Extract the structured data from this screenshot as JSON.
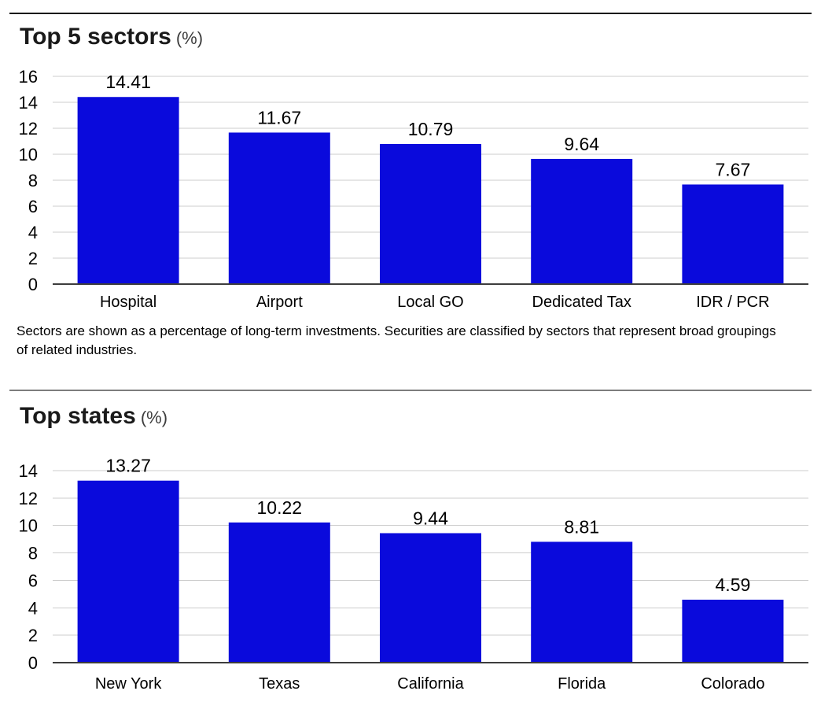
{
  "colors": {
    "bar": "#0a0adc",
    "grid_line": "#cccccc",
    "axis_line": "#3d3d3d",
    "top_rule": "#1a1a1a",
    "divider_rule": "#7d7d7d",
    "text": "#000000"
  },
  "chart_data": [
    {
      "type": "bar",
      "title": "Top 5 sectors",
      "title_unit": "(%)",
      "categories": [
        "Hospital",
        "Airport",
        "Local GO",
        "Dedicated Tax",
        "IDR / PCR"
      ],
      "values": [
        14.41,
        11.67,
        10.79,
        9.64,
        7.67
      ],
      "value_labels": [
        "14.41",
        "11.67",
        "10.79",
        "9.64",
        "7.67"
      ],
      "ylim": [
        0,
        16
      ],
      "ytick_step": 2,
      "ytick_labels": [
        "0",
        "2",
        "4",
        "6",
        "8",
        "10",
        "12",
        "14",
        "16"
      ],
      "grid": true,
      "legend": "none",
      "bar_color": "#0a0adc",
      "footnote": "Sectors are shown as a percentage of long-term investments. Securities are classified by sectors that represent broad groupings of related industries."
    },
    {
      "type": "bar",
      "title": "Top states",
      "title_unit": "(%)",
      "categories": [
        "New York",
        "Texas",
        "California",
        "Florida",
        "Colorado"
      ],
      "values": [
        13.27,
        10.22,
        9.44,
        8.81,
        4.59
      ],
      "value_labels": [
        "13.27",
        "10.22",
        "9.44",
        "8.81",
        "4.59"
      ],
      "ylim": [
        0,
        14
      ],
      "ytick_step": 2,
      "ytick_labels": [
        "0",
        "2",
        "4",
        "6",
        "8",
        "10",
        "12",
        "14"
      ],
      "grid": true,
      "legend": "none",
      "bar_color": "#0a0adc"
    }
  ]
}
